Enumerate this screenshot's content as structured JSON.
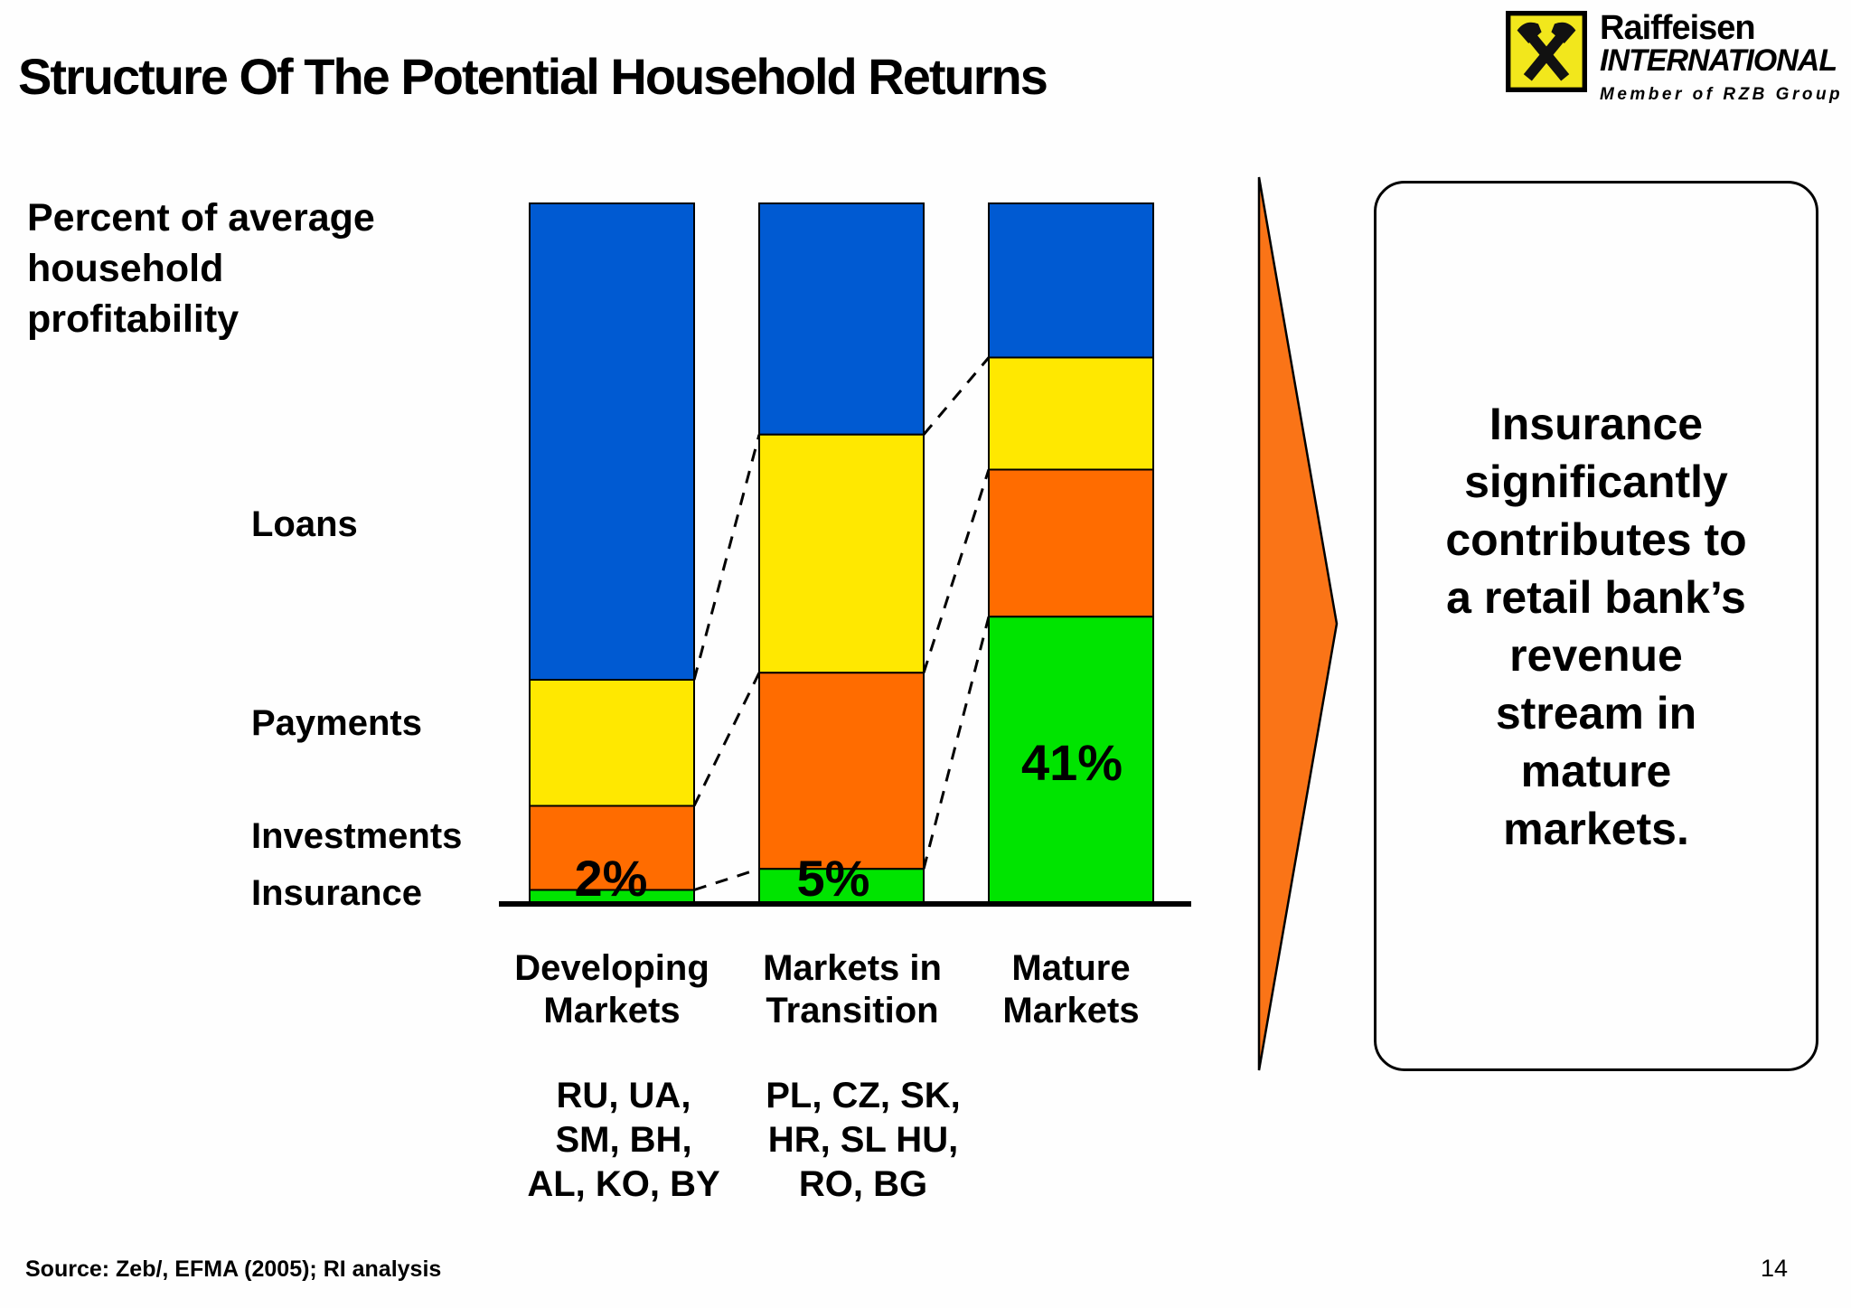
{
  "slide": {
    "title": "Structure Of The Potential Household Returns",
    "page_number": "14",
    "source": "Source: Zeb/, EFMA (2005); RI analysis"
  },
  "logo": {
    "brand": "Raiffeisen",
    "brand2": "INTERNATIONAL",
    "tagline": "Member of RZB Group",
    "box_color": "#F2E71C"
  },
  "arrow": {
    "color": "#FA7417"
  },
  "callout": {
    "text": "Insurance\nsignificantly\ncontributes to\na retail bank’s\nrevenue\nstream in\nmature\nmarkets."
  },
  "chart_data": {
    "type": "bar",
    "stacked": true,
    "ylabel": "Percent of average\nhousehold\nprofitability",
    "ylim": [
      0,
      100
    ],
    "gridlines": false,
    "legend_position": "left",
    "categories": [
      "Developing Markets",
      "Markets in Transition",
      "Mature Markets"
    ],
    "category_countries": [
      "RU, UA, SM, BH, AL, KO, BY",
      "PL, CZ, SK, HR, SL HU, RO, BG",
      ""
    ],
    "series": [
      {
        "name": "Loans",
        "color": "#005AD2",
        "values": [
          68,
          33,
          22
        ]
      },
      {
        "name": "Payments",
        "color": "#FFE800",
        "values": [
          18,
          34,
          16
        ]
      },
      {
        "name": "Investments",
        "color": "#FF6C00",
        "values": [
          12,
          28,
          21
        ]
      },
      {
        "name": "Insurance",
        "color": "#00E400",
        "values": [
          2,
          5,
          41
        ]
      }
    ],
    "insurance_data_labels": [
      "2%",
      "5%",
      "41%"
    ]
  },
  "labels": {
    "category_display": [
      "Developing\nMarkets",
      "Markets in\nTransition",
      "Mature\nMarkets"
    ],
    "countries_display": [
      "RU, UA,\nSM, BH,\nAL, KO, BY",
      "PL, CZ, SK,\nHR, SL HU,\nRO, BG"
    ]
  }
}
